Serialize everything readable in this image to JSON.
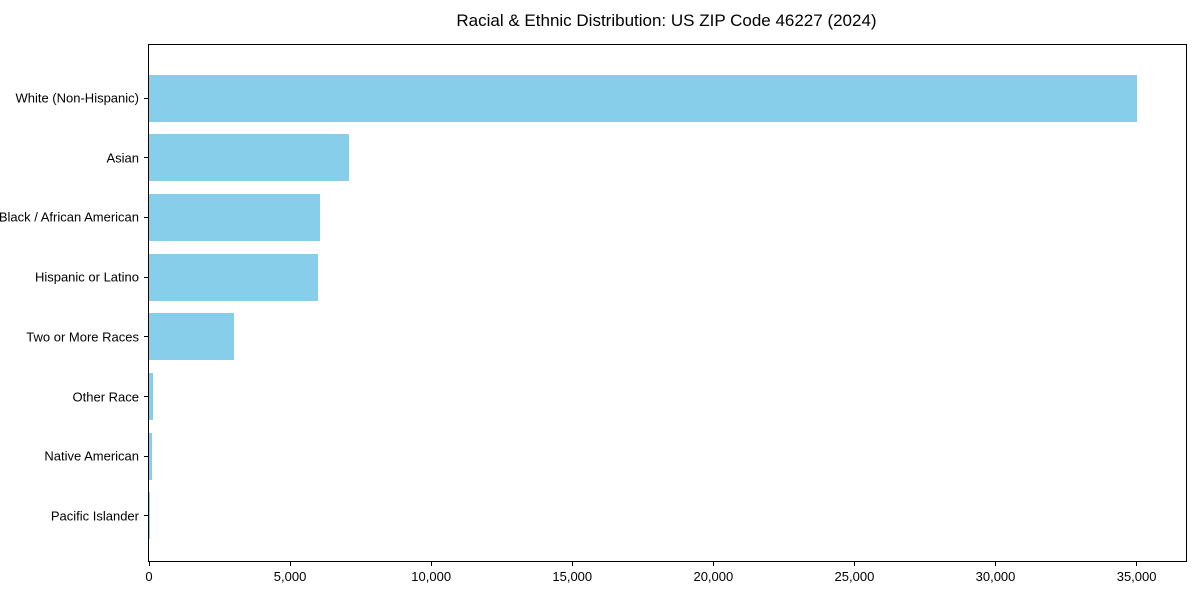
{
  "chart_data": {
    "type": "bar",
    "orientation": "horizontal",
    "title": "Racial & Ethnic Distribution: US ZIP Code 46227 (2024)",
    "categories": [
      "White (Non-Hispanic)",
      "Asian",
      "Black / African American",
      "Hispanic or Latino",
      "Two or More Races",
      "Other Race",
      "Native American",
      "Pacific Islander"
    ],
    "values": [
      35000,
      7100,
      6050,
      6000,
      3000,
      150,
      100,
      20
    ],
    "xlabel": "",
    "ylabel": "",
    "xlim": [
      0,
      36750
    ],
    "xticks": [
      0,
      5000,
      10000,
      15000,
      20000,
      25000,
      30000,
      35000
    ],
    "xtick_labels": [
      "0",
      "5,000",
      "10,000",
      "15,000",
      "20,000",
      "25,000",
      "30,000",
      "35,000"
    ],
    "bar_color": "#87CEEB",
    "grid": false,
    "legend": null
  }
}
